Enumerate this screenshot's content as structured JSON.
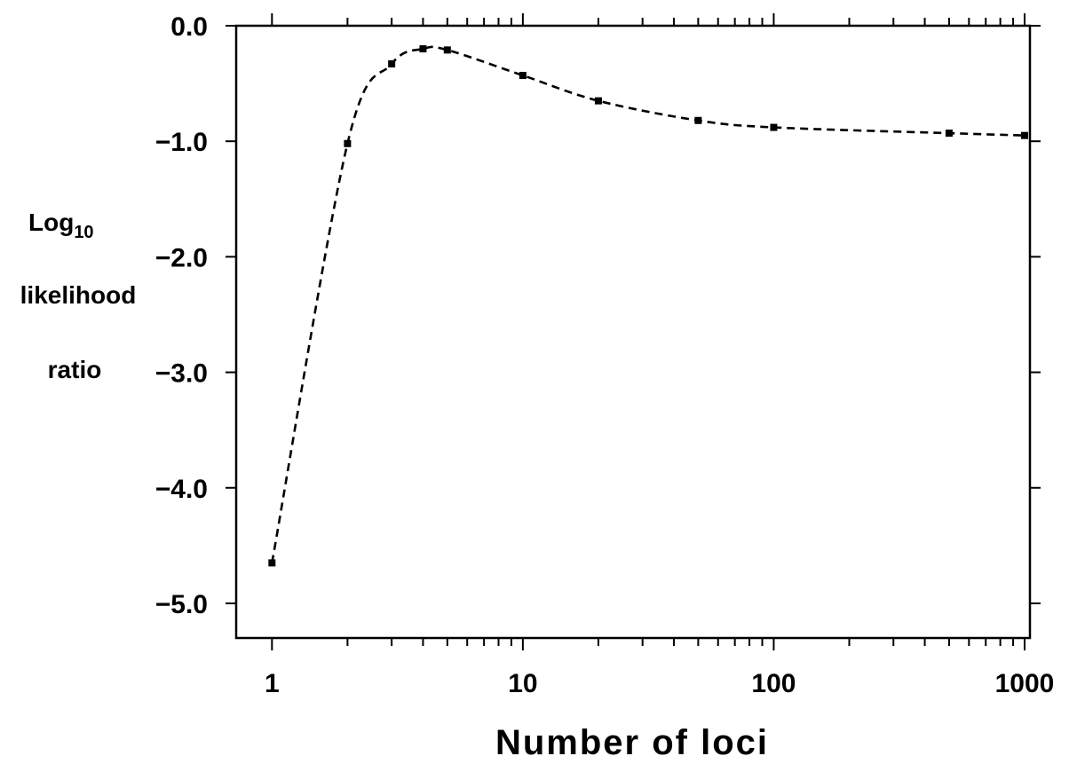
{
  "chart_data": {
    "type": "line",
    "title": "",
    "xlabel": "Number of loci",
    "ylabel": {
      "line1_main": "Log",
      "line1_sub": "10",
      "line2": "likelihood",
      "line3": "ratio"
    },
    "x_scale": "log",
    "xlim": [
      0.72,
      1050
    ],
    "ylim": [
      -5.3,
      0.0
    ],
    "x_ticks": [
      {
        "value": 1,
        "label": "1"
      },
      {
        "value": 10,
        "label": "10"
      },
      {
        "value": 100,
        "label": "100"
      },
      {
        "value": 1000,
        "label": "1000"
      }
    ],
    "y_ticks": [
      {
        "value": 0.0,
        "label": "0.0"
      },
      {
        "value": -1.0,
        "label": "−1.0"
      },
      {
        "value": -2.0,
        "label": "−2.0"
      },
      {
        "value": -3.0,
        "label": "−3.0"
      },
      {
        "value": -4.0,
        "label": "−4.0"
      },
      {
        "value": -5.0,
        "label": "−5.0"
      }
    ],
    "grid": false,
    "legend": "none",
    "series": [
      {
        "line_style": "dashed",
        "marker": "square",
        "color": "#000000",
        "x": [
          1,
          2,
          3,
          4,
          5,
          10,
          20,
          50,
          100,
          500,
          1000
        ],
        "y": [
          -4.65,
          -1.02,
          -0.33,
          -0.2,
          -0.21,
          -0.43,
          -0.65,
          -0.82,
          -0.88,
          -0.93,
          -0.95
        ]
      }
    ]
  }
}
